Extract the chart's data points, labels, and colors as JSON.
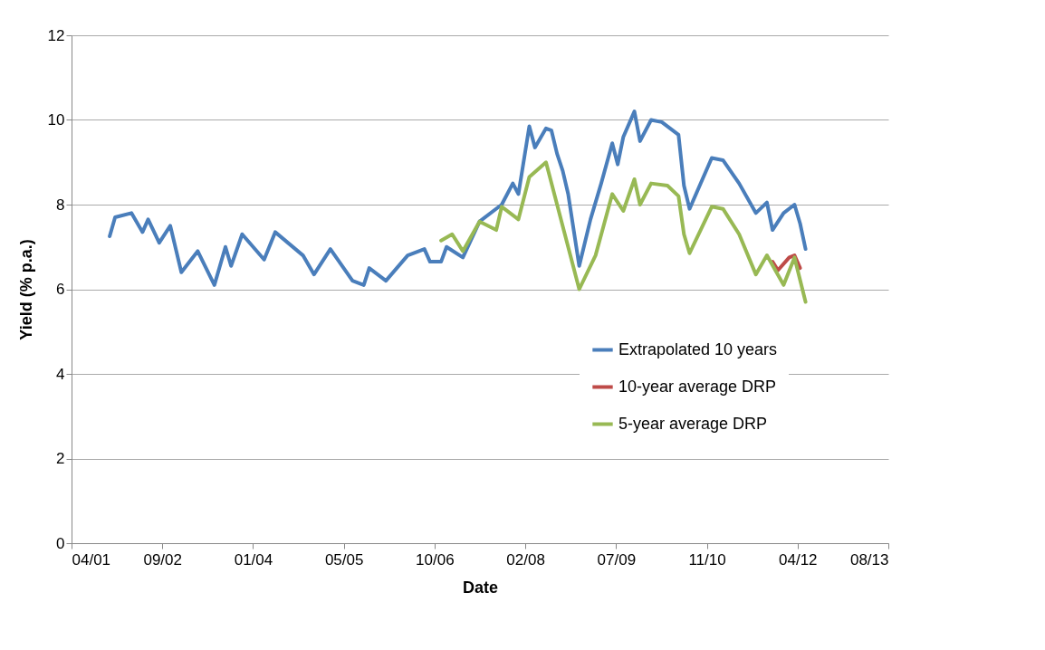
{
  "chart_data": {
    "type": "line",
    "xlabel": "Date",
    "ylabel": "Yield (% p.a.)",
    "xlim": [
      "2001-04-19",
      "2013-08-14"
    ],
    "xticks": [
      {
        "value": "2001-04-19",
        "label": "04/01"
      },
      {
        "value": "2002-09-01",
        "label": "09/02"
      },
      {
        "value": "2004-01-14",
        "label": "01/04"
      },
      {
        "value": "2005-05-28",
        "label": "05/05"
      },
      {
        "value": "2006-10-10",
        "label": "10/06"
      },
      {
        "value": "2008-02-22",
        "label": "02/08"
      },
      {
        "value": "2009-07-06",
        "label": "07/09"
      },
      {
        "value": "2010-11-18",
        "label": "11/10"
      },
      {
        "value": "2012-04-01",
        "label": "04/12"
      },
      {
        "value": "2013-08-14",
        "label": "08/13"
      }
    ],
    "ylim": [
      0,
      12
    ],
    "yticks": [
      0,
      2,
      4,
      6,
      8,
      10,
      12
    ],
    "grid": "y",
    "legend": "bottom right",
    "line_style": "solid",
    "series": [
      {
        "name": "Extrapolated 10 years",
        "color": "#4a7ebb",
        "x": [
          "2001-11-15",
          "2001-12-15",
          "2002-03-15",
          "2002-05-15",
          "2002-06-15",
          "2002-08-15",
          "2002-10-15",
          "2002-12-15",
          "2003-03-15",
          "2003-06-15",
          "2003-08-15",
          "2003-09-15",
          "2003-11-15",
          "2004-03-15",
          "2004-05-15",
          "2004-10-15",
          "2004-12-15",
          "2005-03-15",
          "2005-07-15",
          "2005-09-15",
          "2005-10-15",
          "2006-01-15",
          "2006-05-15",
          "2006-08-15",
          "2006-09-15",
          "2006-11-15",
          "2006-12-15",
          "2007-03-15",
          "2007-06-15",
          "2007-10-15",
          "2007-12-15",
          "2008-01-15",
          "2008-03-15",
          "2008-04-15",
          "2008-06-15",
          "2008-07-15",
          "2008-08-15",
          "2008-09-15",
          "2008-10-15",
          "2008-12-15",
          "2009-02-15",
          "2009-04-15",
          "2009-06-15",
          "2009-07-15",
          "2009-08-15",
          "2009-10-15",
          "2009-11-15",
          "2010-01-15",
          "2010-03-15",
          "2010-06-15",
          "2010-07-15",
          "2010-08-15",
          "2010-12-15",
          "2011-02-15",
          "2011-05-15",
          "2011-08-15",
          "2011-10-15",
          "2011-11-15",
          "2012-01-15",
          "2012-03-15",
          "2012-04-15",
          "2012-05-15"
        ],
        "values": [
          7.25,
          7.7,
          7.8,
          7.35,
          7.65,
          7.1,
          7.5,
          6.4,
          6.9,
          6.1,
          7.0,
          6.55,
          7.3,
          6.7,
          7.35,
          6.8,
          6.35,
          6.95,
          6.2,
          6.1,
          6.5,
          6.2,
          6.8,
          6.95,
          6.65,
          6.65,
          7.0,
          6.75,
          7.6,
          8.0,
          8.5,
          8.25,
          9.85,
          9.35,
          9.8,
          9.75,
          9.2,
          8.8,
          8.25,
          6.55,
          7.65,
          8.5,
          9.45,
          8.95,
          9.6,
          10.2,
          9.5,
          10.0,
          9.95,
          9.65,
          8.45,
          7.9,
          9.1,
          9.05,
          8.5,
          7.8,
          8.05,
          7.4,
          7.8,
          8.0,
          7.55,
          6.95
        ]
      },
      {
        "name": "10-year average DRP",
        "color": "#be4b48",
        "x": [
          "2011-11-15",
          "2011-12-15",
          "2012-02-15",
          "2012-03-15",
          "2012-04-15"
        ],
        "values": [
          6.65,
          6.45,
          6.75,
          6.8,
          6.5
        ]
      },
      {
        "name": "5-year average DRP",
        "color": "#98b954",
        "x": [
          "2006-11-15",
          "2007-01-15",
          "2007-03-15",
          "2007-06-15",
          "2007-09-15",
          "2007-10-15",
          "2008-01-15",
          "2008-03-15",
          "2008-06-15",
          "2008-08-15",
          "2008-10-15",
          "2008-12-15",
          "2009-03-15",
          "2009-06-15",
          "2009-08-15",
          "2009-10-15",
          "2009-11-15",
          "2010-01-15",
          "2010-04-15",
          "2010-06-15",
          "2010-07-15",
          "2010-08-15",
          "2010-12-15",
          "2011-02-15",
          "2011-05-15",
          "2011-08-15",
          "2011-10-15",
          "2012-01-15",
          "2012-03-15",
          "2012-05-15"
        ],
        "values": [
          7.15,
          7.3,
          6.9,
          7.6,
          7.4,
          7.95,
          7.65,
          8.65,
          9.0,
          8.0,
          7.0,
          6.0,
          6.8,
          8.25,
          7.85,
          8.6,
          8.0,
          8.5,
          8.45,
          8.2,
          7.3,
          6.85,
          7.95,
          7.9,
          7.3,
          6.35,
          6.8,
          6.1,
          6.75,
          5.7
        ]
      }
    ]
  }
}
